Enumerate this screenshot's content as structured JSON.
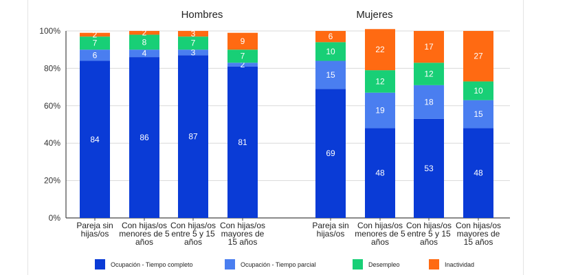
{
  "chart_data": {
    "type": "bar",
    "stacked": true,
    "ylim": [
      0,
      100
    ],
    "yticks": [
      "0%",
      "20%",
      "40%",
      "60%",
      "80%",
      "100%"
    ],
    "grid": true,
    "legend_position": "bottom",
    "series": [
      {
        "name": "Ocupación - Tiempo completo",
        "color": "#0a3bd6"
      },
      {
        "name": "Ocupación - Tiempo parcial",
        "color": "#4a7ef0"
      },
      {
        "name": "Desempleo",
        "color": "#18cf76"
      },
      {
        "name": "Inactividad",
        "color": "#ff6a12"
      }
    ],
    "panels": [
      {
        "title": "Hombres",
        "categories": [
          [
            "Pareja sin",
            "hijas/os"
          ],
          [
            "Con hijas/os",
            "menores de 5",
            "años"
          ],
          [
            "Con hijas/os",
            "entre 5 y 15",
            "años"
          ],
          [
            "Con hijas/os",
            "mayores de",
            "15 años"
          ]
        ],
        "values": [
          [
            84,
            6,
            7,
            2
          ],
          [
            86,
            4,
            8,
            2
          ],
          [
            87,
            3,
            7,
            3
          ],
          [
            81,
            2,
            7,
            9
          ]
        ]
      },
      {
        "title": "Mujeres",
        "categories": [
          [
            "Pareja sin",
            "hijas/os"
          ],
          [
            "Con hijas/os",
            "menores de 5",
            "años"
          ],
          [
            "Con hijas/os",
            "entre 5 y 15",
            "años"
          ],
          [
            "Con hijas/os",
            "mayores de",
            "15 años"
          ]
        ],
        "values": [
          [
            69,
            15,
            10,
            6
          ],
          [
            48,
            19,
            12,
            22
          ],
          [
            53,
            18,
            12,
            17
          ],
          [
            48,
            15,
            10,
            27
          ]
        ]
      }
    ]
  }
}
